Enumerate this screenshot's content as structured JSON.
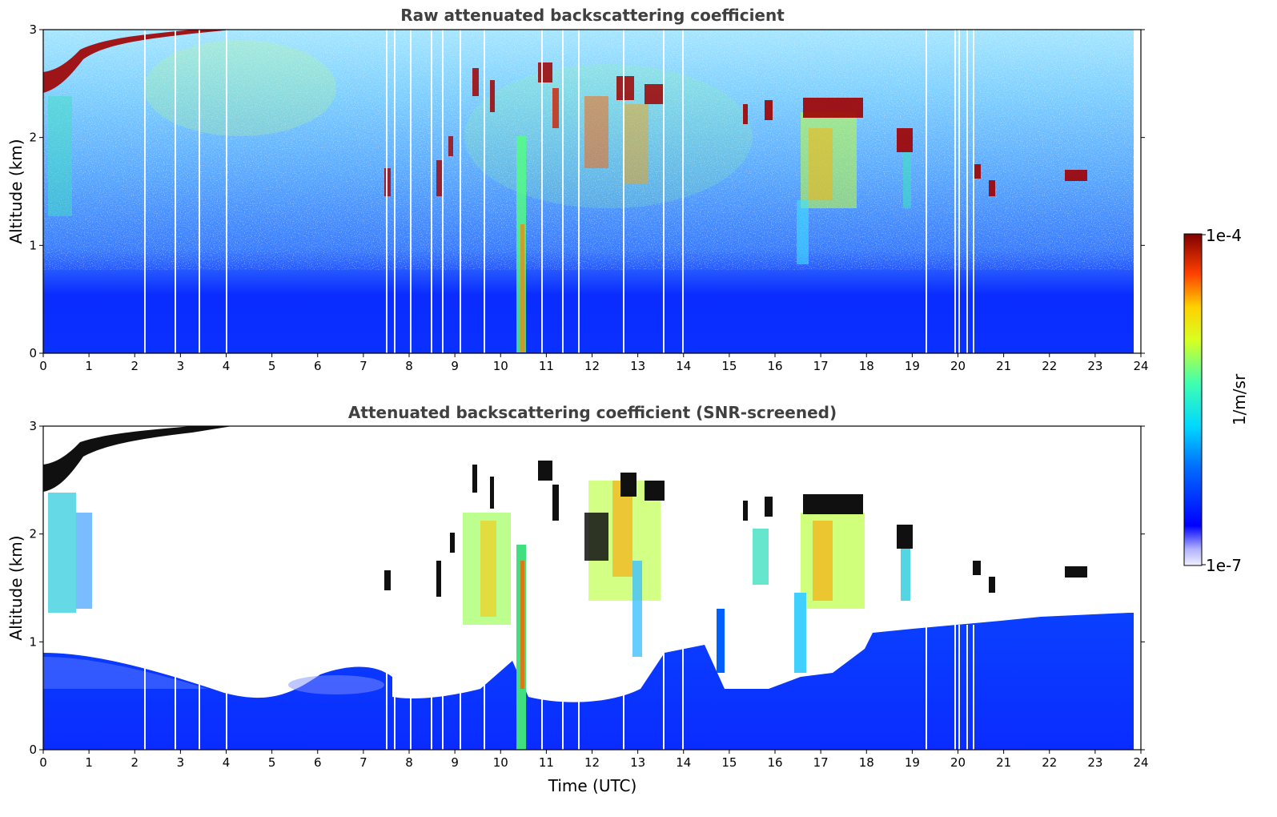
{
  "chart_data": [
    {
      "type": "heatmap",
      "title": "Raw attenuated backscattering coefficient",
      "xlabel": "",
      "ylabel": "Altitude (km)",
      "xlim": [
        0,
        24
      ],
      "ylim": [
        0,
        3
      ],
      "x_ticks": [
        "0",
        "1",
        "2",
        "3",
        "4",
        "5",
        "6",
        "7",
        "8",
        "9",
        "10",
        "11",
        "12",
        "13",
        "14",
        "15",
        "16",
        "17",
        "18",
        "19",
        "20",
        "21",
        "22",
        "23",
        "24"
      ],
      "y_ticks": [
        "0",
        "1",
        "2",
        "3"
      ],
      "grid": false
    },
    {
      "type": "heatmap",
      "title": "Attenuated backscattering coefficient (SNR-screened)",
      "xlabel": "Time (UTC)",
      "ylabel": "Altitude (km)",
      "xlim": [
        0,
        24
      ],
      "ylim": [
        0,
        3
      ],
      "x_ticks": [
        "0",
        "1",
        "2",
        "3",
        "4",
        "5",
        "6",
        "7",
        "8",
        "9",
        "10",
        "11",
        "12",
        "13",
        "14",
        "15",
        "16",
        "17",
        "18",
        "19",
        "20",
        "21",
        "22",
        "23",
        "24"
      ],
      "y_ticks": [
        "0",
        "1",
        "2",
        "3"
      ],
      "grid": false
    }
  ],
  "colorbar": {
    "label": "1/m/sr",
    "max_label": "1e-4",
    "min_label": "1e-7",
    "colormap": "jet",
    "scale": "log"
  }
}
